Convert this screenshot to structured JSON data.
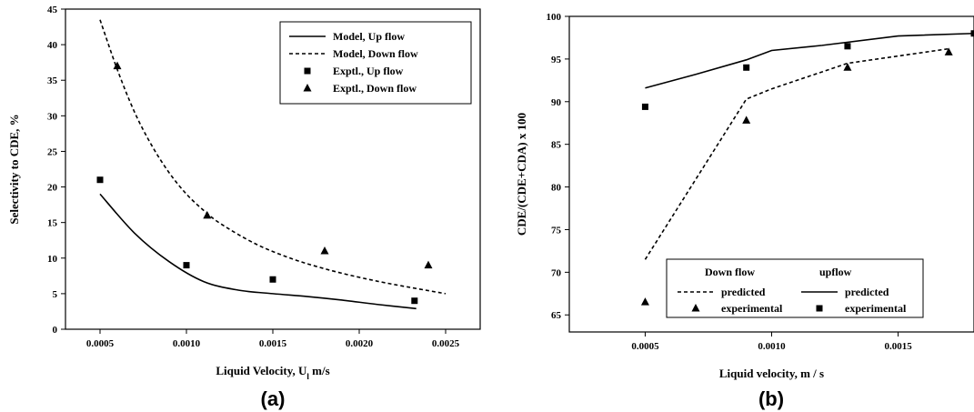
{
  "chart_data": [
    {
      "type": "scatter",
      "panel_label": "(a)",
      "xlabel": "Liquid Velocity, U",
      "xlabel_subscript": "l",
      "xlabel_unit": " m/s",
      "ylabel": "Selectivity to CDE, %",
      "xlim": [
        0.0003,
        0.0027
      ],
      "ylim": [
        0,
        45
      ],
      "xticks": [
        "0.0005",
        "0.0010",
        "0.0015",
        "0.0020",
        "0.0025"
      ],
      "xtick_values": [
        0.0005,
        0.001,
        0.0015,
        0.002,
        0.0025
      ],
      "yticks": [
        "0",
        "5",
        "10",
        "15",
        "20",
        "25",
        "30",
        "35",
        "40",
        "45"
      ],
      "ytick_values": [
        0,
        5,
        10,
        15,
        20,
        25,
        30,
        35,
        40,
        45
      ],
      "legend_position": "top-right",
      "series": [
        {
          "name": "Model, Up flow",
          "style": "solid-line",
          "x": [
            0.0005,
            0.0007,
            0.0009,
            0.0011,
            0.0013,
            0.0015,
            0.0017,
            0.0019,
            0.0021,
            0.00233
          ],
          "y": [
            19.0,
            13.5,
            9.5,
            6.7,
            5.5,
            5.0,
            4.6,
            4.1,
            3.5,
            2.9
          ]
        },
        {
          "name": "Model, Down flow",
          "style": "dashed-line",
          "x": [
            0.0005,
            0.0006,
            0.0007,
            0.0008,
            0.0009,
            0.001,
            0.0011,
            0.0012,
            0.0014,
            0.0016,
            0.0018,
            0.002,
            0.0022,
            0.0025
          ],
          "y": [
            43.5,
            36.5,
            30.5,
            25.8,
            22.0,
            19.0,
            16.7,
            14.8,
            12.0,
            10.0,
            8.5,
            7.3,
            6.3,
            5.0
          ]
        },
        {
          "name": "Exptl., Up flow",
          "style": "square-marker",
          "x": [
            0.0005,
            0.001,
            0.0015,
            0.00232
          ],
          "y": [
            21,
            9,
            7,
            4
          ]
        },
        {
          "name": "Exptl., Down flow",
          "style": "triangle-marker",
          "x": [
            0.0006,
            0.00112,
            0.0018,
            0.0024
          ],
          "y": [
            37,
            16,
            11,
            9
          ]
        }
      ]
    },
    {
      "type": "scatter",
      "panel_label": "(b)",
      "xlabel": "Liquid velocity, m / s",
      "ylabel": "CDE/(CDE+CDA) x 100",
      "xlim": [
        0.0002,
        0.0018
      ],
      "ylim": [
        63,
        100
      ],
      "xticks": [
        "0.0005",
        "0.0010",
        "0.0015"
      ],
      "xtick_values": [
        0.0005,
        0.001,
        0.0015
      ],
      "yticks": [
        "65",
        "70",
        "75",
        "80",
        "85",
        "90",
        "95",
        "100"
      ],
      "ytick_values": [
        65,
        70,
        75,
        80,
        85,
        90,
        95,
        100
      ],
      "legend_position": "bottom-right",
      "legend_headers": [
        "Down flow",
        "upflow"
      ],
      "series": [
        {
          "name": "predicted",
          "group": "Down flow",
          "style": "dashed-line",
          "x": [
            0.0005,
            0.0009,
            0.001,
            0.0013,
            0.0017
          ],
          "y": [
            71.5,
            90.3,
            91.5,
            94.5,
            96.2
          ]
        },
        {
          "name": "experimental",
          "group": "Down flow",
          "style": "triangle-marker",
          "x": [
            0.0005,
            0.0009,
            0.0013,
            0.0017
          ],
          "y": [
            66.5,
            87.8,
            94.0,
            95.8
          ]
        },
        {
          "name": "predicted",
          "group": "upflow",
          "style": "solid-line",
          "x": [
            0.0005,
            0.0007,
            0.0009,
            0.001,
            0.0012,
            0.0015,
            0.0018
          ],
          "y": [
            91.6,
            93.2,
            94.9,
            96.0,
            96.6,
            97.7,
            98.0
          ]
        },
        {
          "name": "experimental",
          "group": "upflow",
          "style": "square-marker",
          "x": [
            0.0005,
            0.0009,
            0.0013,
            0.0018
          ],
          "y": [
            89.4,
            94.0,
            96.5,
            98.0
          ]
        }
      ]
    }
  ]
}
